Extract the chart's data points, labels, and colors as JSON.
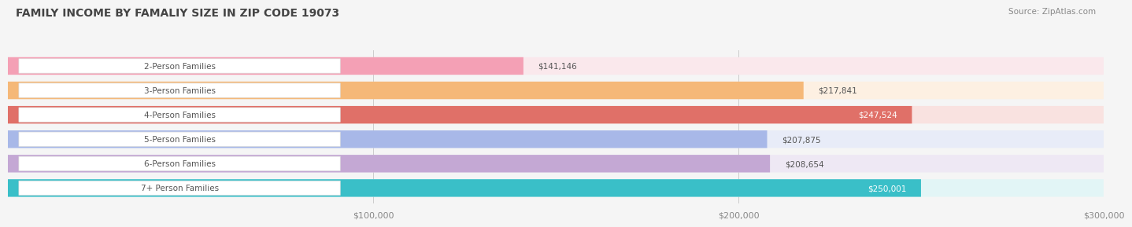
{
  "title": "FAMILY INCOME BY FAMALIY SIZE IN ZIP CODE 19073",
  "source": "Source: ZipAtlas.com",
  "categories": [
    "2-Person Families",
    "3-Person Families",
    "4-Person Families",
    "5-Person Families",
    "6-Person Families",
    "7+ Person Families"
  ],
  "values": [
    141146,
    217841,
    247524,
    207875,
    208654,
    250001
  ],
  "labels": [
    "$141,146",
    "$217,841",
    "$247,524",
    "$207,875",
    "$208,654",
    "$250,001"
  ],
  "bar_colors": [
    "#F4A0B5",
    "#F5B878",
    "#E07068",
    "#A8B8E8",
    "#C4A8D4",
    "#3ABFC8"
  ],
  "bg_colors": [
    "#FAE8EC",
    "#FDF0E2",
    "#F9E2E0",
    "#E8ECF8",
    "#EEE8F4",
    "#E2F5F6"
  ],
  "label_colors": [
    "#555555",
    "#555555",
    "#ffffff",
    "#555555",
    "#555555",
    "#ffffff"
  ],
  "xmin": 0,
  "xmax": 300000,
  "xticks": [
    100000,
    200000,
    300000
  ],
  "xtick_labels": [
    "$100,000",
    "$200,000",
    "$300,000"
  ],
  "title_fontsize": 10,
  "source_fontsize": 7.5,
  "bar_label_fontsize": 7.5,
  "tick_fontsize": 8,
  "category_fontsize": 7.5,
  "background_color": "#f5f5f5"
}
